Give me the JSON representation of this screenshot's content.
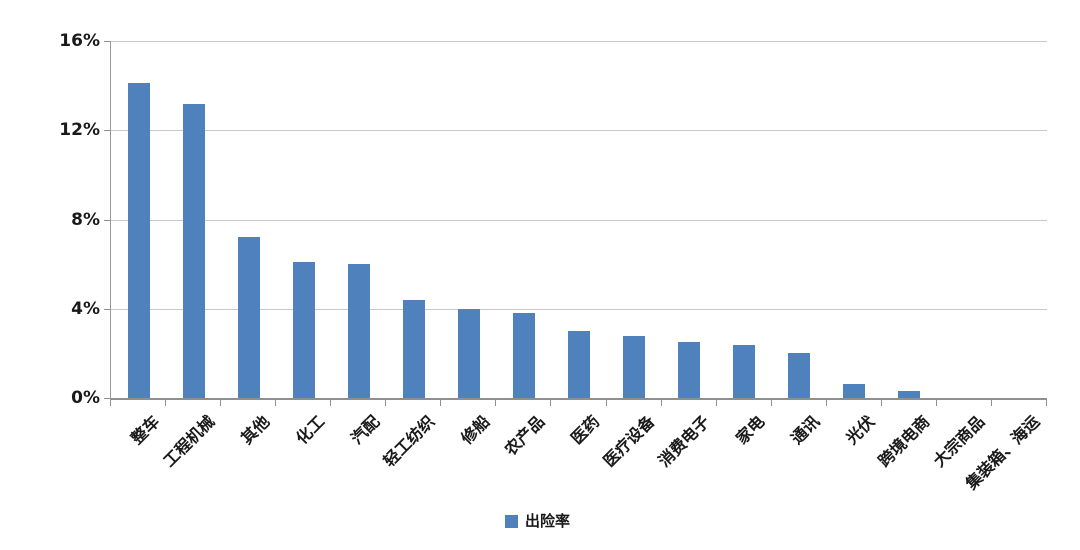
{
  "chart_data": {
    "type": "bar",
    "title": "",
    "series_name": "出险率",
    "categories": [
      "整车",
      "工程机械",
      "其他",
      "化工",
      "汽配",
      "轻工纺织",
      "修船",
      "农产品",
      "医药",
      "医疗设备",
      "消费电子",
      "家电",
      "通讯",
      "光伏",
      "跨境电商",
      "大宗商品",
      "集装箱、海运"
    ],
    "values": [
      14.1,
      13.2,
      7.2,
      6.1,
      6.0,
      4.4,
      4.0,
      3.8,
      3.0,
      2.8,
      2.5,
      2.4,
      2.0,
      0.65,
      0.3,
      0,
      0
    ],
    "unit": "%",
    "ylim": [
      0,
      16
    ],
    "y_tick_labels": [
      "16%",
      "12%",
      "8%",
      "4%",
      "0%"
    ],
    "grid": true,
    "legend_position": "bottom-center",
    "x_label_rotation_deg": 45
  },
  "legend": {
    "label": "出险率",
    "swatch_color": "#4F81BD"
  },
  "colors": {
    "bar": "#4F81BD",
    "gridline": "#C8C8C8",
    "axis": "#8F8F8F",
    "text": "#1A1A1A",
    "background": "#FFFFFF"
  }
}
